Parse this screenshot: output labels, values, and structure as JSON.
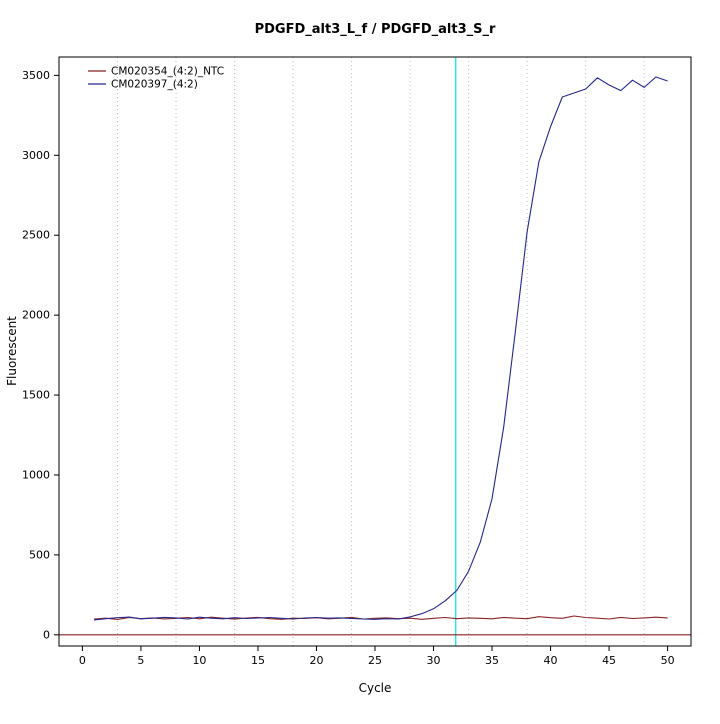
{
  "chart_data": {
    "type": "line",
    "title": "PDGFD_alt3_L_f / PDGFD_alt3_S_r",
    "xlabel": "Cycle",
    "ylabel": "Fluorescent",
    "xlim": [
      -2,
      52
    ],
    "ylim": [
      -70,
      3615
    ],
    "x_ticks": [
      0,
      5,
      10,
      15,
      20,
      25,
      30,
      35,
      40,
      45,
      50
    ],
    "y_ticks": [
      0,
      500,
      1000,
      1500,
      2000,
      2500,
      3000,
      3500
    ],
    "grid_x": [
      3,
      8,
      13,
      18,
      23,
      28,
      33,
      38,
      43,
      48
    ],
    "threshold_cycle": 31.9,
    "zero_line_value": 0,
    "x": [
      1,
      2,
      3,
      4,
      5,
      6,
      7,
      8,
      9,
      10,
      11,
      12,
      13,
      14,
      15,
      16,
      17,
      18,
      19,
      20,
      21,
      22,
      23,
      24,
      25,
      26,
      27,
      28,
      29,
      30,
      31,
      32,
      33,
      34,
      35,
      36,
      37,
      38,
      39,
      40,
      41,
      42,
      43,
      44,
      45,
      46,
      47,
      48,
      49,
      50
    ],
    "series": [
      {
        "name": "CM020354_(4:2)_NTC",
        "color": "#8b2323",
        "values": [
          98,
          104,
          96,
          108,
          101,
          106,
          99,
          103,
          108,
          100,
          110,
          104,
          98,
          105,
          109,
          101,
          97,
          104,
          102,
          107,
          100,
          104,
          109,
          99,
          103,
          106,
          101,
          104,
          97,
          103,
          108,
          101,
          106,
          103,
          100,
          109,
          104,
          101,
          113,
          107,
          103,
          118,
          108,
          104,
          99,
          109,
          102,
          106,
          110,
          106
        ]
      },
      {
        "name": "CM020397_(4:2)",
        "color": "#26268c",
        "values": [
          93,
          101,
          107,
          111,
          100,
          104,
          109,
          106,
          99,
          110,
          104,
          100,
          107,
          102,
          105,
          108,
          103,
          99,
          105,
          108,
          104,
          106,
          102,
          99,
          97,
          101,
          99,
          112,
          132,
          163,
          213,
          278,
          398,
          580,
          850,
          1300,
          1900,
          2520,
          2960,
          3180,
          3365,
          3390,
          3415,
          3485,
          3440,
          3405,
          3470,
          3425,
          3490,
          3465
        ]
      }
    ],
    "colors": {
      "threshold_line": "#00e5e5",
      "zero_line": "#8b2323",
      "grid": "#b9b9b9",
      "axis": "#000000"
    },
    "legend_position": "top-left",
    "grid": "vertical-dotted"
  }
}
